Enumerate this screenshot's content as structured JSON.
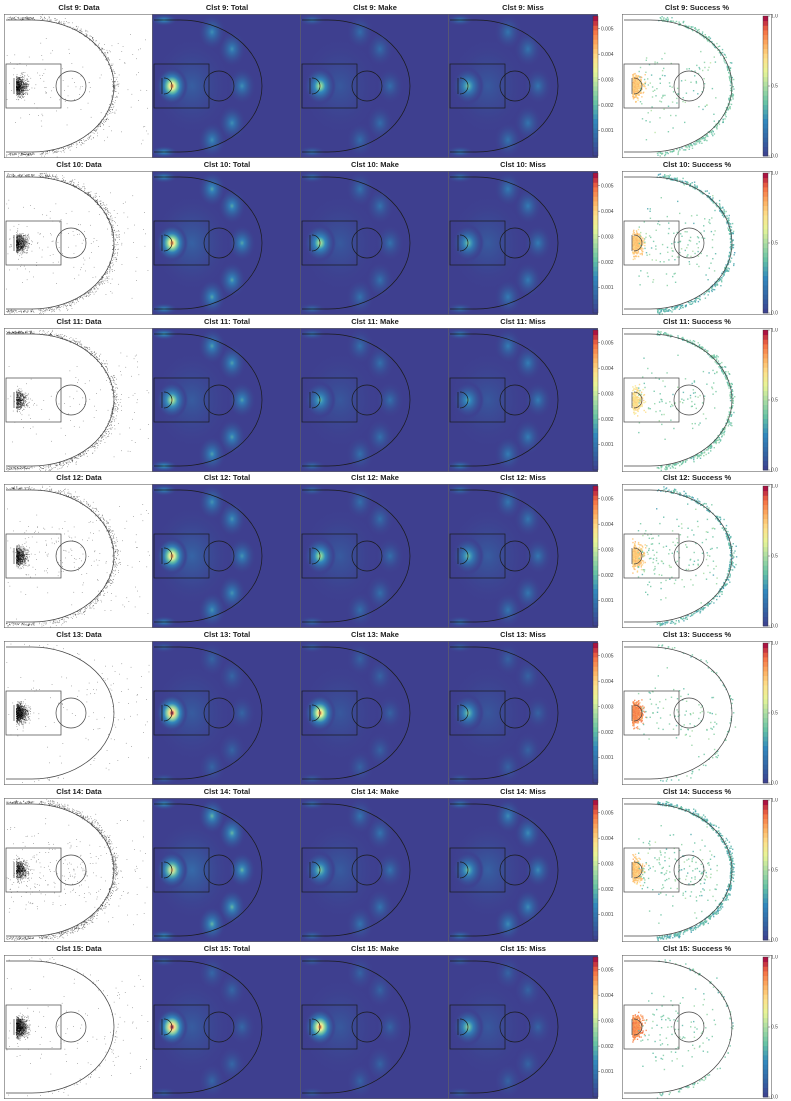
{
  "figure": {
    "panel_types": [
      "Data",
      "Total",
      "Make",
      "Miss",
      "Success %"
    ],
    "density_colorbar": {
      "colormap": "spectral",
      "ticks": [
        "0.005",
        "0.004",
        "0.003",
        "0.002",
        "0.001"
      ],
      "tick_values": [
        0.005,
        0.004,
        0.003,
        0.002,
        0.001
      ],
      "max": 0.0055
    },
    "success_colorbar": {
      "colormap": "spectral",
      "ticks": [
        "1.0",
        "0.5",
        "0.0"
      ],
      "tick_values": [
        1.0,
        0.5,
        0.0
      ]
    },
    "background_color": "#3e3f8f",
    "point_color": "#000000"
  },
  "chart_data": [
    {
      "type": "heatmap",
      "cluster": "Clst 9",
      "titles": [
        "Clst 9: Data",
        "Clst 9: Total",
        "Clst 9: Make",
        "Clst 9: Miss",
        "Clst 9: Success %"
      ],
      "profile": {
        "paint": 1.0,
        "arc": 0.55,
        "corner": 0.7,
        "mid": 0.15
      },
      "make_scale": 0.55,
      "miss_scale": 0.5,
      "success_paint": 0.75,
      "success_arc": 0.4
    },
    {
      "type": "heatmap",
      "cluster": "Clst 10",
      "titles": [
        "Clst 10: Data",
        "Clst 10: Total",
        "Clst 10: Make",
        "Clst 10: Miss",
        "Clst 10: Success %"
      ],
      "profile": {
        "paint": 1.0,
        "arc": 0.75,
        "corner": 0.55,
        "mid": 0.2
      },
      "make_scale": 0.55,
      "miss_scale": 0.5,
      "success_paint": 0.75,
      "success_arc": 0.35
    },
    {
      "type": "heatmap",
      "cluster": "Clst 11",
      "titles": [
        "Clst 11: Data",
        "Clst 11: Total",
        "Clst 11: Make",
        "Clst 11: Miss",
        "Clst 11: Success %"
      ],
      "profile": {
        "paint": 0.6,
        "arc": 0.7,
        "corner": 0.75,
        "mid": 0.1
      },
      "make_scale": 0.5,
      "miss_scale": 0.55,
      "success_paint": 0.7,
      "success_arc": 0.4
    },
    {
      "type": "heatmap",
      "cluster": "Clst 12",
      "titles": [
        "Clst 12: Data",
        "Clst 12: Total",
        "Clst 12: Make",
        "Clst 12: Miss",
        "Clst 12: Success %"
      ],
      "profile": {
        "paint": 0.95,
        "arc": 0.6,
        "corner": 0.5,
        "mid": 0.25
      },
      "make_scale": 0.55,
      "miss_scale": 0.5,
      "success_paint": 0.75,
      "success_arc": 0.35
    },
    {
      "type": "heatmap",
      "cluster": "Clst 13",
      "titles": [
        "Clst 13: Data",
        "Clst 13: Total",
        "Clst 13: Make",
        "Clst 13: Miss",
        "Clst 13: Success %"
      ],
      "profile": {
        "paint": 1.3,
        "arc": 0.05,
        "corner": 0.02,
        "mid": 0.1
      },
      "make_scale": 0.75,
      "miss_scale": 0.4,
      "success_paint": 0.85,
      "success_arc": 0.4
    },
    {
      "type": "heatmap",
      "cluster": "Clst 14",
      "titles": [
        "Clst 14: Data",
        "Clst 14: Total",
        "Clst 14: Make",
        "Clst 14: Miss",
        "Clst 14: Success %"
      ],
      "profile": {
        "paint": 0.8,
        "arc": 0.9,
        "corner": 0.6,
        "mid": 0.35
      },
      "make_scale": 0.5,
      "miss_scale": 0.6,
      "success_paint": 0.75,
      "success_arc": 0.35
    },
    {
      "type": "heatmap",
      "cluster": "Clst 15",
      "titles": [
        "Clst 15: Data",
        "Clst 15: Total",
        "Clst 15: Make",
        "Clst 15: Miss",
        "Clst 15: Success %"
      ],
      "profile": {
        "paint": 1.35,
        "arc": 0.08,
        "corner": 0.02,
        "mid": 0.12
      },
      "make_scale": 0.75,
      "miss_scale": 0.45,
      "success_paint": 0.85,
      "success_arc": 0.4
    }
  ]
}
